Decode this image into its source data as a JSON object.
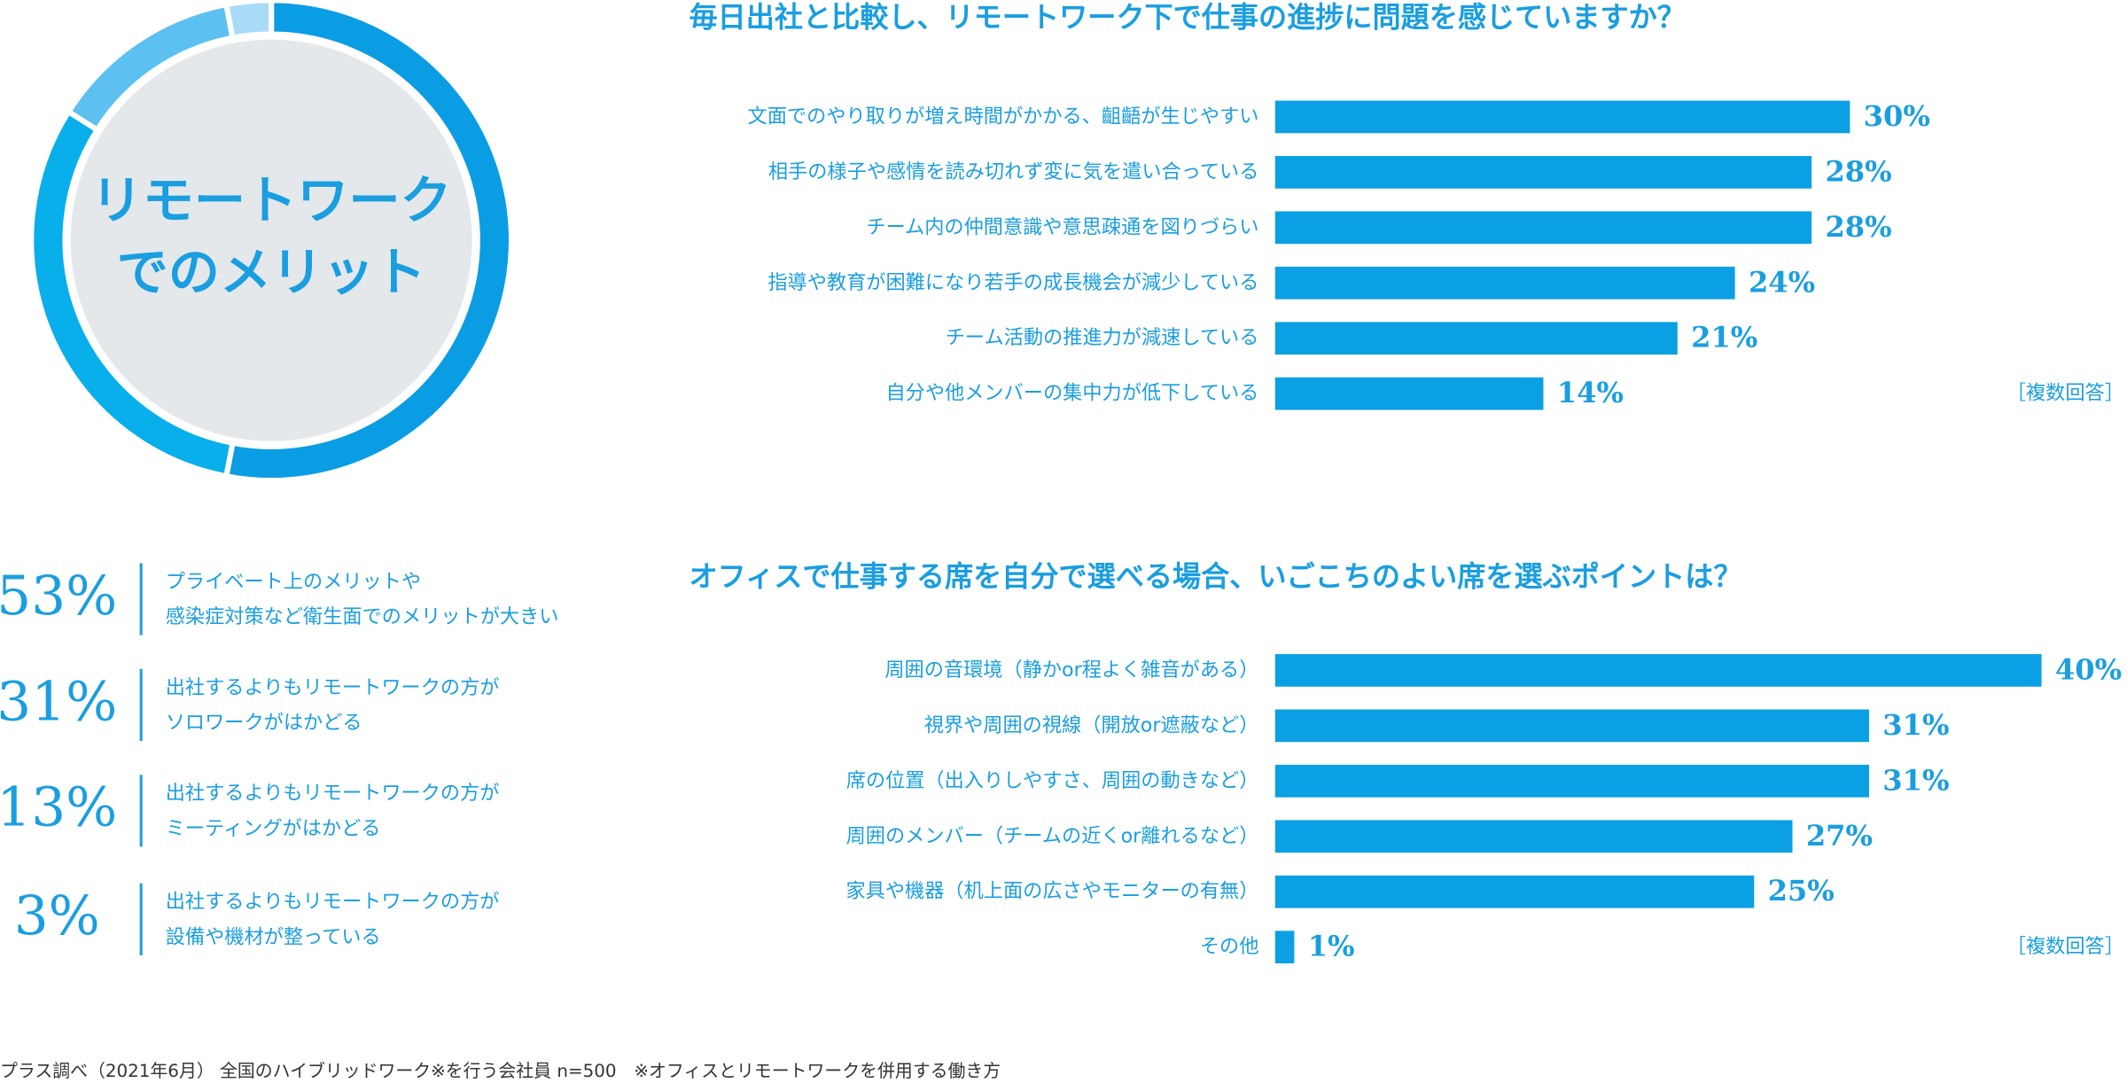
{
  "chart_data": [
    {
      "type": "donut",
      "title": [
        "リモートワーク",
        "でのメリット"
      ],
      "values": [
        53,
        31,
        13,
        3
      ],
      "value_labels": [
        "53%",
        "31%",
        "13%",
        "3%"
      ],
      "categories": [
        [
          "プライベート上のメリットや",
          "感染症対策など衛生面でのメリットが大きい"
        ],
        [
          "出社するよりもリモートワークの方が",
          "ソロワークがはかどる"
        ],
        [
          "出社するよりもリモートワークの方が",
          "ミーティングがはかどる"
        ],
        [
          "出社するよりもリモートワークの方が",
          "設備や機材が整っている"
        ]
      ],
      "colors": [
        "#0b9de3",
        "#08afea",
        "#5cc1f0",
        "#a9dbf7"
      ]
    },
    {
      "type": "hbar",
      "title": "毎日出社と比較し、リモートワーク下で仕事の進捗に問題を感じていますか？",
      "categories": [
        "文面でのやり取りが増え時間がかかる、齟齬が生じやすい",
        "相手の様子や感情を読み切れず変に気を遣い合っている",
        "チーム内の仲間意識や意思疎通を図りづらい",
        "指導や教育が困難になり若手の成長機会が減少している",
        "チーム活動の推進力が減速している",
        "自分や他メンバーの集中力が低下している"
      ],
      "values": [
        30,
        28,
        28,
        24,
        21,
        14
      ],
      "value_labels": [
        "30%",
        "28%",
        "28%",
        "24%",
        "21%",
        "14%"
      ],
      "note": "［複数回答］",
      "xlim": [
        0,
        40
      ],
      "color": "#0ba0e3"
    },
    {
      "type": "hbar",
      "title": "オフィスで仕事する席を自分で選べる場合、いごこちのよい席を選ぶポイントは？",
      "categories": [
        "周囲の音環境（静かor程よく雑音がある）",
        "視界や周囲の視線（開放or遮蔽など）",
        "席の位置（出入りしやすさ、周囲の動きなど）",
        "周囲のメンバー（チームの近くor離れるなど）",
        "家具や機器（机上面の広さやモニターの有無）",
        "その他"
      ],
      "values": [
        40,
        31,
        31,
        27,
        25,
        1
      ],
      "value_labels": [
        "40%",
        "31%",
        "31%",
        "27%",
        "25%",
        "1%"
      ],
      "note": "［複数回答］",
      "xlim": [
        0,
        40
      ],
      "color": "#0ba0e3"
    }
  ],
  "footer": "プラス調べ（2021年6月） 全国のハイブリッドワーク※を行う会社員 n=500　※オフィスとリモートワークを併用する働き方"
}
